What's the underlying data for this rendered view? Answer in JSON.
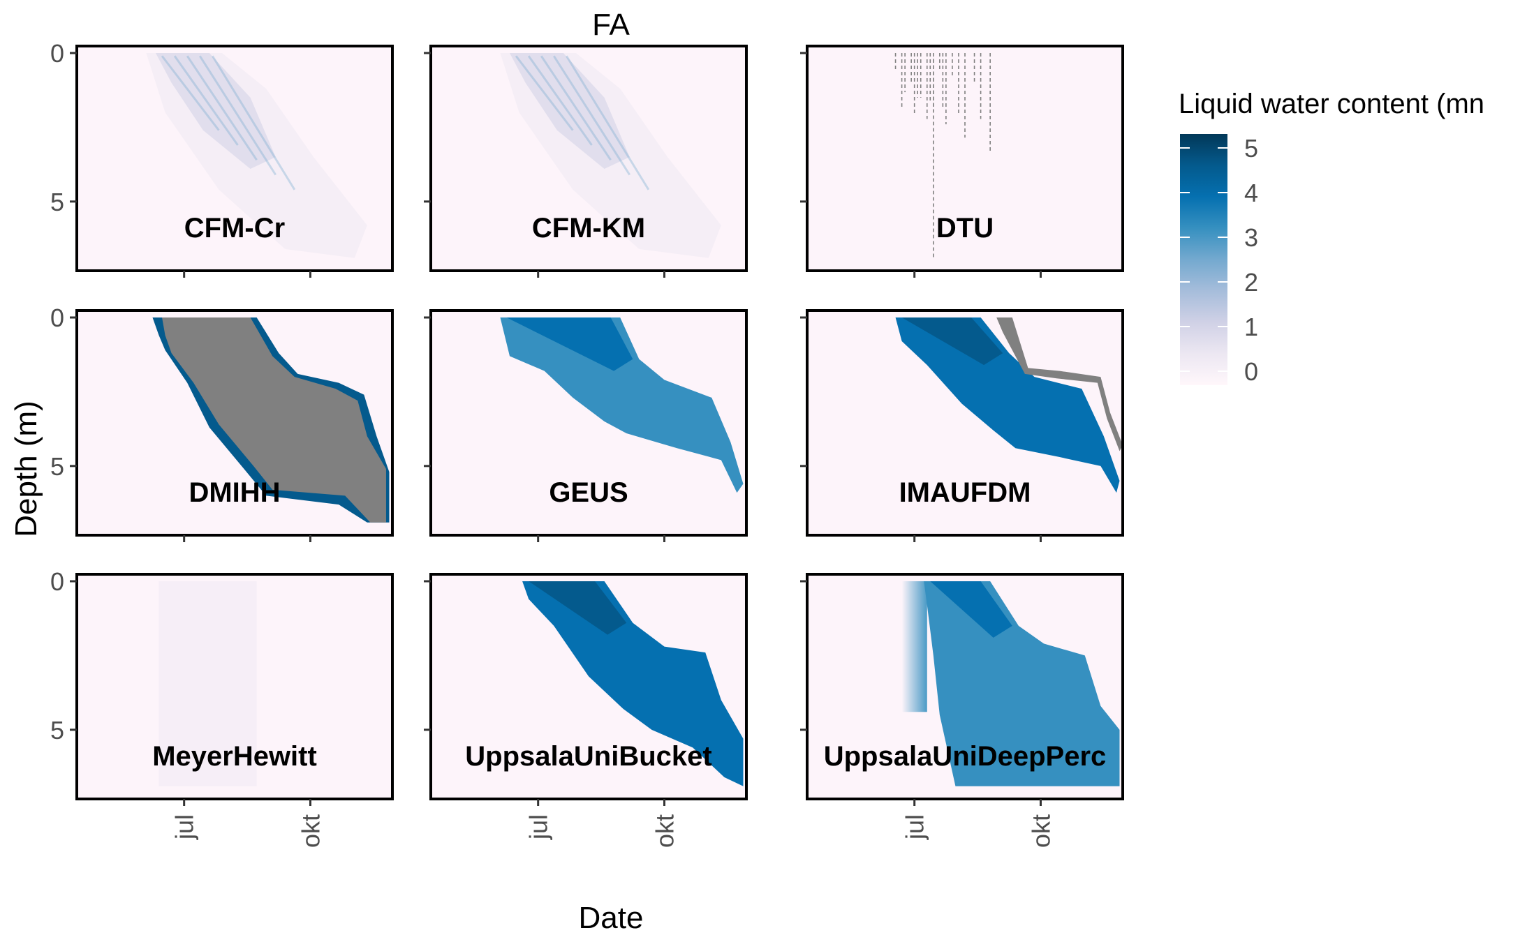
{
  "chart_data": {
    "type": "heatmap",
    "title": "FA",
    "xlabel": "Date",
    "ylabel": "Depth (m)",
    "x_ticks": [
      "jul",
      "okt"
    ],
    "y_ticks": [
      "0",
      "5"
    ],
    "ylim": [
      0,
      7
    ],
    "y_reversed": true,
    "legend": {
      "title": "Liquid water content (mn",
      "position": "right",
      "ticks": [
        "5",
        "4",
        "3",
        "2",
        "1",
        "0"
      ],
      "range": [
        0,
        5
      ],
      "colors": [
        "#fff7fb",
        "#ece7f2",
        "#d0d1e6",
        "#a6bddb",
        "#74a9cf",
        "#3690c0",
        "#0570b0",
        "#045a8d",
        "#023858"
      ]
    },
    "na_color": "#808080",
    "panels": [
      {
        "name": "CFM-Cr",
        "style": "diffuse",
        "peak_value": 1.5
      },
      {
        "name": "CFM-KM",
        "style": "diffuse",
        "peak_value": 1.5
      },
      {
        "name": "DTU",
        "style": "streaks",
        "peak_value": 0.5
      },
      {
        "name": "DMIHH",
        "style": "na_band",
        "peak_value": 5
      },
      {
        "name": "GEUS",
        "style": "band",
        "peak_value": 4
      },
      {
        "name": "IMAUFDM",
        "style": "band",
        "peak_value": 4.5
      },
      {
        "name": "MeyerHewitt",
        "style": "faint",
        "peak_value": 0.5
      },
      {
        "name": "UppsalaUniBucket",
        "style": "band",
        "peak_value": 4.5
      },
      {
        "name": "UppsalaUniDeepPerc",
        "style": "band",
        "peak_value": 4
      }
    ]
  }
}
